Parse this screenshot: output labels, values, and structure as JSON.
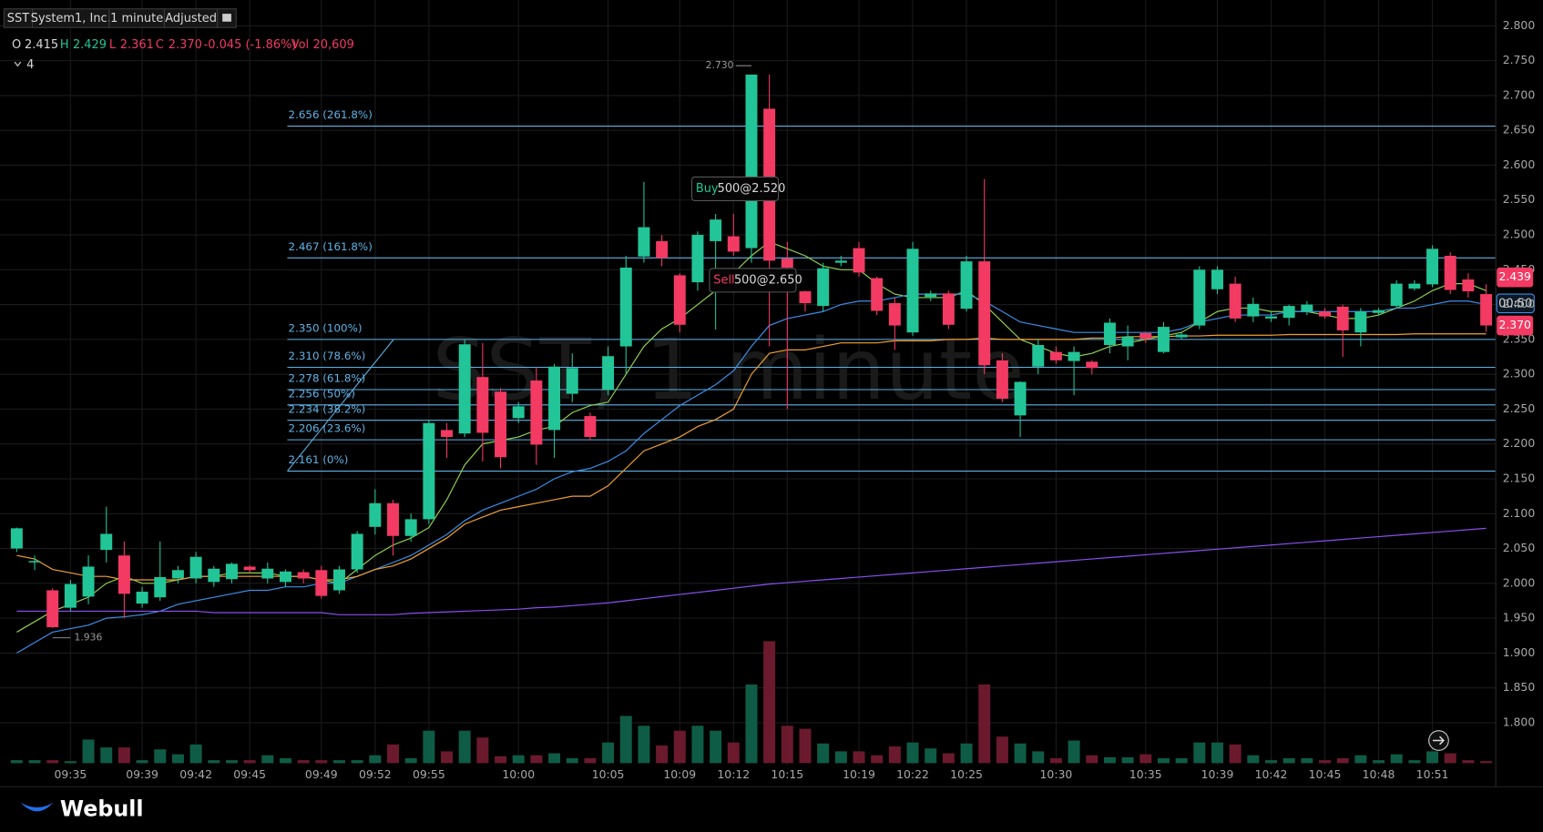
{
  "header": {
    "symbol": "SST",
    "company": "System1, Inc.",
    "interval": "1 minute",
    "adjustment": "Adjusted",
    "legend": {
      "o_label": "O",
      "o": "2.415",
      "h_label": "H",
      "h": "2.429",
      "l_label": "L",
      "l": "2.361",
      "c_label": "C",
      "c": "2.370",
      "change": "-0.045 (-1.86%)",
      "vol_label": "Vol",
      "vol": "20,609"
    },
    "indicator_count": "4"
  },
  "watermark": "SST, 1 minute",
  "logo": "Webull",
  "chart_data": {
    "type": "candlestick",
    "categories": [
      null,
      null,
      null,
      "09:35",
      null,
      null,
      null,
      "09:39",
      null,
      null,
      "09:42",
      null,
      null,
      "09:45",
      null,
      null,
      null,
      "09:49",
      null,
      null,
      "09:52",
      null,
      null,
      "09:55",
      null,
      null,
      null,
      null,
      "10:00",
      null,
      null,
      null,
      null,
      "10:05",
      null,
      null,
      null,
      "10:09",
      null,
      null,
      "10:12",
      null,
      null,
      "10:15",
      null,
      null,
      null,
      "10:19",
      null,
      null,
      "10:22",
      null,
      null,
      "10:25",
      null,
      null,
      null,
      null,
      "10:30",
      null,
      null,
      null,
      null,
      "10:35",
      null,
      null,
      null,
      "10:39",
      null,
      null,
      "10:42",
      null,
      null,
      "10:45",
      null,
      null,
      "10:48",
      null,
      null,
      "10:51",
      null,
      null,
      null
    ],
    "open": [
      2.05,
      2.03,
      1.99,
      1.965,
      1.981,
      2.048,
      2.04,
      1.971,
      1.98,
      2.007,
      2.007,
      2.002,
      2.006,
      2.024,
      2.007,
      2.002,
      2.016,
      2.019,
      1.99,
      2.02,
      2.081,
      2.115,
      2.068,
      2.092,
      2.22,
      2.215,
      2.296,
      2.275,
      2.237,
      2.291,
      2.22,
      2.272,
      2.24,
      2.278,
      2.34,
      2.469,
      2.491,
      2.442,
      2.432,
      2.491,
      2.498,
      2.481,
      2.681,
      2.466,
      2.419,
      2.398,
      2.46,
      2.481,
      2.438,
      2.402,
      2.36,
      2.411,
      2.416,
      2.394,
      2.462,
      2.32,
      2.241,
      2.311,
      2.332,
      2.319,
      2.318,
      2.342,
      2.34,
      2.359,
      2.332,
      2.353,
      2.37,
      2.422,
      2.43,
      2.383,
      2.38,
      2.381,
      2.39,
      2.39,
      2.397,
      2.36,
      2.388,
      2.398,
      2.423,
      2.429,
      2.47,
      2.436,
      2.415
    ],
    "high": [
      2.08,
      2.04,
      1.993,
      2.005,
      2.04,
      2.11,
      2.06,
      1.995,
      2.06,
      2.025,
      2.045,
      2.025,
      2.03,
      2.026,
      2.03,
      2.02,
      2.02,
      2.025,
      2.025,
      2.075,
      2.135,
      2.12,
      2.1,
      2.235,
      2.23,
      2.35,
      2.345,
      2.28,
      2.26,
      2.31,
      2.315,
      2.33,
      2.245,
      2.34,
      2.47,
      2.576,
      2.5,
      2.445,
      2.505,
      2.53,
      2.53,
      2.73,
      2.73,
      2.49,
      2.42,
      2.46,
      2.47,
      2.49,
      2.44,
      2.41,
      2.49,
      2.42,
      2.42,
      2.47,
      2.58,
      2.33,
      2.29,
      2.35,
      2.34,
      2.34,
      2.32,
      2.38,
      2.37,
      2.36,
      2.375,
      2.36,
      2.455,
      2.455,
      2.44,
      2.41,
      2.39,
      2.4,
      2.405,
      2.395,
      2.4,
      2.395,
      2.395,
      2.435,
      2.435,
      2.485,
      2.475,
      2.445,
      2.429
    ],
    "low": [
      2.045,
      2.019,
      1.936,
      1.96,
      1.97,
      2.03,
      1.95,
      1.965,
      1.975,
      2.0,
      2.0,
      1.995,
      2.0,
      2.015,
      2.0,
      1.995,
      2.0,
      1.978,
      1.985,
      2.015,
      2.07,
      2.04,
      2.06,
      2.085,
      2.18,
      2.21,
      2.175,
      2.165,
      2.23,
      2.17,
      2.18,
      2.26,
      2.205,
      2.27,
      2.3,
      2.46,
      2.455,
      2.36,
      2.42,
      2.364,
      2.47,
      2.46,
      2.34,
      2.25,
      2.39,
      2.39,
      2.455,
      2.44,
      2.385,
      2.335,
      2.355,
      2.405,
      2.365,
      2.39,
      2.3,
      2.26,
      2.21,
      2.3,
      2.315,
      2.27,
      2.3,
      2.33,
      2.32,
      2.345,
      2.33,
      2.35,
      2.365,
      2.415,
      2.375,
      2.375,
      2.375,
      2.37,
      2.385,
      2.38,
      2.325,
      2.34,
      2.385,
      2.395,
      2.42,
      2.425,
      2.415,
      2.41,
      2.361
    ],
    "close": [
      2.079,
      2.032,
      1.937,
      1.999,
      2.024,
      2.071,
      1.985,
      1.988,
      2.009,
      2.019,
      2.038,
      2.021,
      2.028,
      2.019,
      2.021,
      2.017,
      2.007,
      1.982,
      2.02,
      2.071,
      2.115,
      2.068,
      2.092,
      2.23,
      2.21,
      2.343,
      2.216,
      2.181,
      2.254,
      2.199,
      2.311,
      2.309,
      2.21,
      2.326,
      2.453,
      2.511,
      2.467,
      2.371,
      2.5,
      2.522,
      2.476,
      2.73,
      2.463,
      2.453,
      2.402,
      2.452,
      2.463,
      2.446,
      2.391,
      2.37,
      2.48,
      2.416,
      2.371,
      2.462,
      2.313,
      2.265,
      2.289,
      2.342,
      2.32,
      2.332,
      2.309,
      2.374,
      2.354,
      2.351,
      2.368,
      2.357,
      2.45,
      2.45,
      2.38,
      2.401,
      2.383,
      2.398,
      2.4,
      2.383,
      2.363,
      2.39,
      2.392,
      2.43,
      2.43,
      2.48,
      2.421,
      2.419,
      2.37
    ],
    "volume": [
      30000,
      30000,
      30000,
      20000,
      240000,
      160000,
      160000,
      30000,
      140000,
      90000,
      190000,
      30000,
      30000,
      30000,
      80000,
      50000,
      30000,
      30000,
      30000,
      30000,
      80000,
      190000,
      50000,
      330000,
      120000,
      330000,
      260000,
      70000,
      80000,
      80000,
      100000,
      50000,
      50000,
      210000,
      480000,
      380000,
      180000,
      330000,
      380000,
      330000,
      210000,
      800000,
      1240000,
      380000,
      350000,
      200000,
      120000,
      120000,
      80000,
      170000,
      210000,
      150000,
      100000,
      200000,
      800000,
      270000,
      200000,
      120000,
      50000,
      230000,
      80000,
      60000,
      60000,
      90000,
      50000,
      50000,
      210000,
      210000,
      190000,
      80000,
      30000,
      50000,
      50000,
      30000,
      50000,
      80000,
      30000,
      90000,
      30000,
      120000,
      100000,
      30000,
      20609
    ],
    "volume_lim": [
      0,
      1400000
    ],
    "up_color": "#22c597",
    "down_color": "#f23a63",
    "up_volume_color": "#0f5c46",
    "down_volume_color": "#6b1a2d",
    "ma_lines": [
      {
        "color": "#8fd14f",
        "values": [
          1.93,
          1.945,
          1.96,
          1.97,
          1.98,
          2.0,
          2.01,
          2.0,
          2.0,
          2.005,
          2.01,
          2.01,
          2.015,
          2.015,
          2.015,
          2.01,
          2.01,
          2.005,
          2.0,
          2.02,
          2.04,
          2.055,
          2.065,
          2.08,
          2.12,
          2.17,
          2.2,
          2.205,
          2.21,
          2.22,
          2.225,
          2.245,
          2.255,
          2.26,
          2.3,
          2.34,
          2.365,
          2.38,
          2.4,
          2.42,
          2.445,
          2.47,
          2.49,
          2.48,
          2.47,
          2.455,
          2.45,
          2.45,
          2.43,
          2.415,
          2.41,
          2.41,
          2.41,
          2.42,
          2.4,
          2.375,
          2.35,
          2.34,
          2.33,
          2.325,
          2.33,
          2.34,
          2.345,
          2.35,
          2.355,
          2.36,
          2.375,
          2.39,
          2.395,
          2.395,
          2.39,
          2.39,
          2.39,
          2.385,
          2.38,
          2.38,
          2.385,
          2.395,
          2.405,
          2.42,
          2.43,
          2.43,
          2.42
        ]
      },
      {
        "color": "#3b8fe8",
        "values": [
          1.9,
          1.915,
          1.93,
          1.935,
          1.94,
          1.95,
          1.952,
          1.955,
          1.96,
          1.97,
          1.975,
          1.98,
          1.985,
          1.99,
          1.99,
          1.995,
          1.995,
          2.0,
          2.0,
          2.01,
          2.02,
          2.03,
          2.04,
          2.055,
          2.07,
          2.09,
          2.105,
          2.115,
          2.125,
          2.135,
          2.15,
          2.16,
          2.165,
          2.175,
          2.19,
          2.215,
          2.235,
          2.255,
          2.27,
          2.285,
          2.305,
          2.34,
          2.37,
          2.38,
          2.385,
          2.39,
          2.4,
          2.405,
          2.405,
          2.41,
          2.415,
          2.415,
          2.415,
          2.415,
          2.405,
          2.39,
          2.375,
          2.37,
          2.365,
          2.36,
          2.36,
          2.36,
          2.36,
          2.36,
          2.36,
          2.365,
          2.375,
          2.38,
          2.385,
          2.385,
          2.385,
          2.39,
          2.39,
          2.39,
          2.39,
          2.39,
          2.39,
          2.395,
          2.395,
          2.4,
          2.405,
          2.405,
          2.4
        ]
      },
      {
        "color": "#f0a030",
        "values": [
          2.04,
          2.035,
          2.02,
          2.015,
          2.01,
          2.01,
          2.005,
          2.005,
          2.005,
          2.005,
          2.01,
          2.01,
          2.01,
          2.01,
          2.01,
          2.01,
          2.01,
          2.005,
          2.005,
          2.01,
          2.02,
          2.025,
          2.035,
          2.05,
          2.065,
          2.085,
          2.095,
          2.105,
          2.11,
          2.115,
          2.12,
          2.125,
          2.125,
          2.14,
          2.165,
          2.19,
          2.2,
          2.21,
          2.225,
          2.235,
          2.25,
          2.3,
          2.33,
          2.335,
          2.335,
          2.34,
          2.345,
          2.345,
          2.345,
          2.348,
          2.348,
          2.348,
          2.35,
          2.35,
          2.352,
          2.35,
          2.35,
          2.35,
          2.35,
          2.35,
          2.352,
          2.352,
          2.354,
          2.354,
          2.354,
          2.355,
          2.355,
          2.356,
          2.356,
          2.356,
          2.356,
          2.357,
          2.357,
          2.357,
          2.357,
          2.357,
          2.357,
          2.357,
          2.358,
          2.358,
          2.358,
          2.358,
          2.358
        ]
      },
      {
        "color": "#8a4ff0",
        "values": [
          1.96,
          1.96,
          1.96,
          1.96,
          1.96,
          1.96,
          1.96,
          1.96,
          1.96,
          1.96,
          1.96,
          1.958,
          1.958,
          1.958,
          1.958,
          1.958,
          1.958,
          1.958,
          1.955,
          1.955,
          1.955,
          1.955,
          1.957,
          1.958,
          1.959,
          1.96,
          1.961,
          1.962,
          1.963,
          1.965,
          1.966,
          1.968,
          1.97,
          1.972,
          1.975,
          1.978,
          1.981,
          1.984,
          1.987,
          1.99,
          1.993,
          1.996,
          1.999,
          2.001,
          2.003,
          2.005,
          2.007,
          2.009,
          2.011,
          2.013,
          2.015,
          2.017,
          2.019,
          2.021,
          2.023,
          2.025,
          2.027,
          2.029,
          2.031,
          2.033,
          2.035,
          2.037,
          2.039,
          2.041,
          2.043,
          2.045,
          2.047,
          2.049,
          2.051,
          2.053,
          2.055,
          2.057,
          2.059,
          2.061,
          2.063,
          2.065,
          2.067,
          2.069,
          2.071,
          2.073,
          2.075,
          2.077,
          2.079
        ]
      }
    ],
    "fib_color": "#5fb3e6",
    "fib_levels": [
      {
        "value": 2.656,
        "label": "2.656 (261.8%)"
      },
      {
        "value": 2.467,
        "label": "2.467 (161.8%)"
      },
      {
        "value": 2.35,
        "label": "2.350 (100%)"
      },
      {
        "value": 2.31,
        "label": "2.310 (78.6%)"
      },
      {
        "value": 2.278,
        "label": "2.278 (61.8%)"
      },
      {
        "value": 2.256,
        "label": "2.256 (50%)"
      },
      {
        "value": 2.234,
        "label": "2.234 (38.2%)"
      },
      {
        "value": 2.206,
        "label": "2.206 (23.6%)"
      },
      {
        "value": 2.161,
        "label": "2.161 (0%)"
      }
    ],
    "high_marker": {
      "value": 2.73,
      "label": "2.730"
    },
    "low_marker": {
      "value": 1.936,
      "label": "1.936"
    },
    "trades": [
      {
        "side": "Buy",
        "text": "500@2.520"
      },
      {
        "side": "Sell",
        "text": "500@2.650"
      }
    ],
    "price_tags": [
      {
        "value": 2.439,
        "label": "2.439"
      },
      {
        "value": 2.37,
        "label": "2.370"
      }
    ],
    "countdown": "00:50",
    "ylim": [
      1.742,
      2.837
    ],
    "yticks": [
      {
        "value": 1.8,
        "label": "1.800"
      },
      {
        "value": 1.85,
        "label": "1.850"
      },
      {
        "value": 1.9,
        "label": "1.900"
      },
      {
        "value": 1.95,
        "label": "1.950"
      },
      {
        "value": 2.0,
        "label": "2.000"
      },
      {
        "value": 2.05,
        "label": "2.050"
      },
      {
        "value": 2.1,
        "label": "2.100"
      },
      {
        "value": 2.15,
        "label": "2.150"
      },
      {
        "value": 2.2,
        "label": "2.200"
      },
      {
        "value": 2.25,
        "label": "2.250"
      },
      {
        "value": 2.3,
        "label": "2.300"
      },
      {
        "value": 2.35,
        "label": "2.350"
      },
      {
        "value": 2.4,
        "label": "2.400"
      },
      {
        "value": 2.45,
        "label": "2.450"
      },
      {
        "value": 2.5,
        "label": "2.500"
      },
      {
        "value": 2.55,
        "label": "2.550"
      },
      {
        "value": 2.6,
        "label": "2.600"
      },
      {
        "value": 2.65,
        "label": "2.650"
      },
      {
        "value": 2.7,
        "label": "2.700"
      },
      {
        "value": 2.75,
        "label": "2.750"
      },
      {
        "value": 2.8,
        "label": "2.800"
      }
    ],
    "grid": true
  }
}
